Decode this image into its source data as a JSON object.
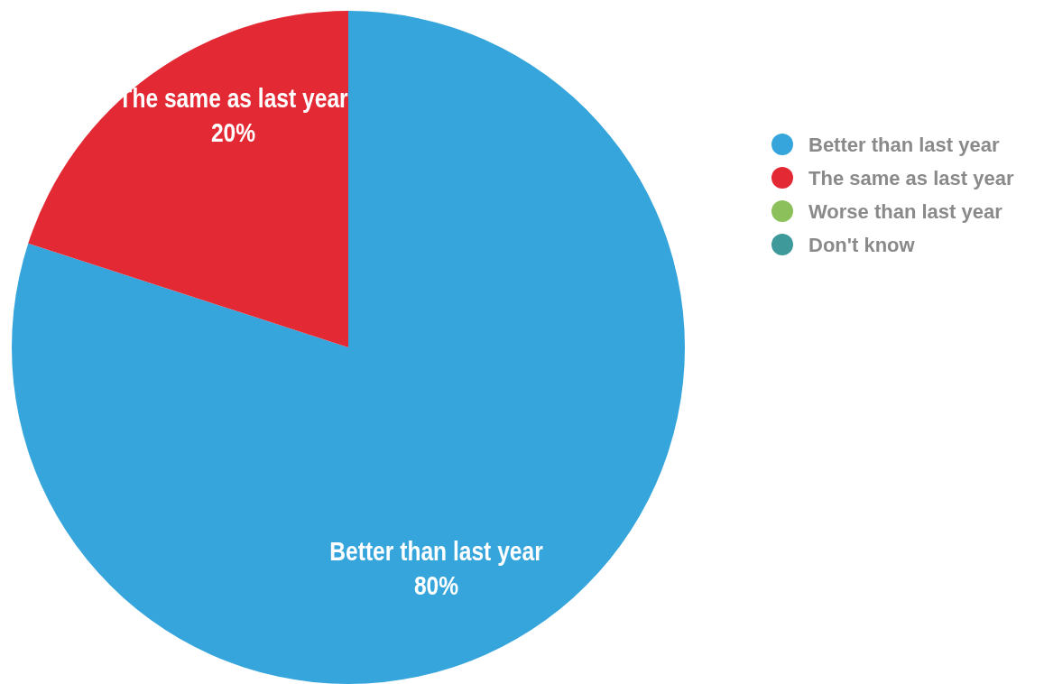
{
  "chart_data": {
    "type": "pie",
    "categories": [
      "Better than last year",
      "The same as last year",
      "Worse than last year",
      "Don't know"
    ],
    "values": [
      80,
      20,
      0,
      0
    ],
    "colors": [
      "#35a5dc",
      "#e32934",
      "#8cc05a",
      "#3e9a9a"
    ],
    "value_labels": [
      "80%",
      "20%",
      null,
      null
    ],
    "legend": "right"
  }
}
